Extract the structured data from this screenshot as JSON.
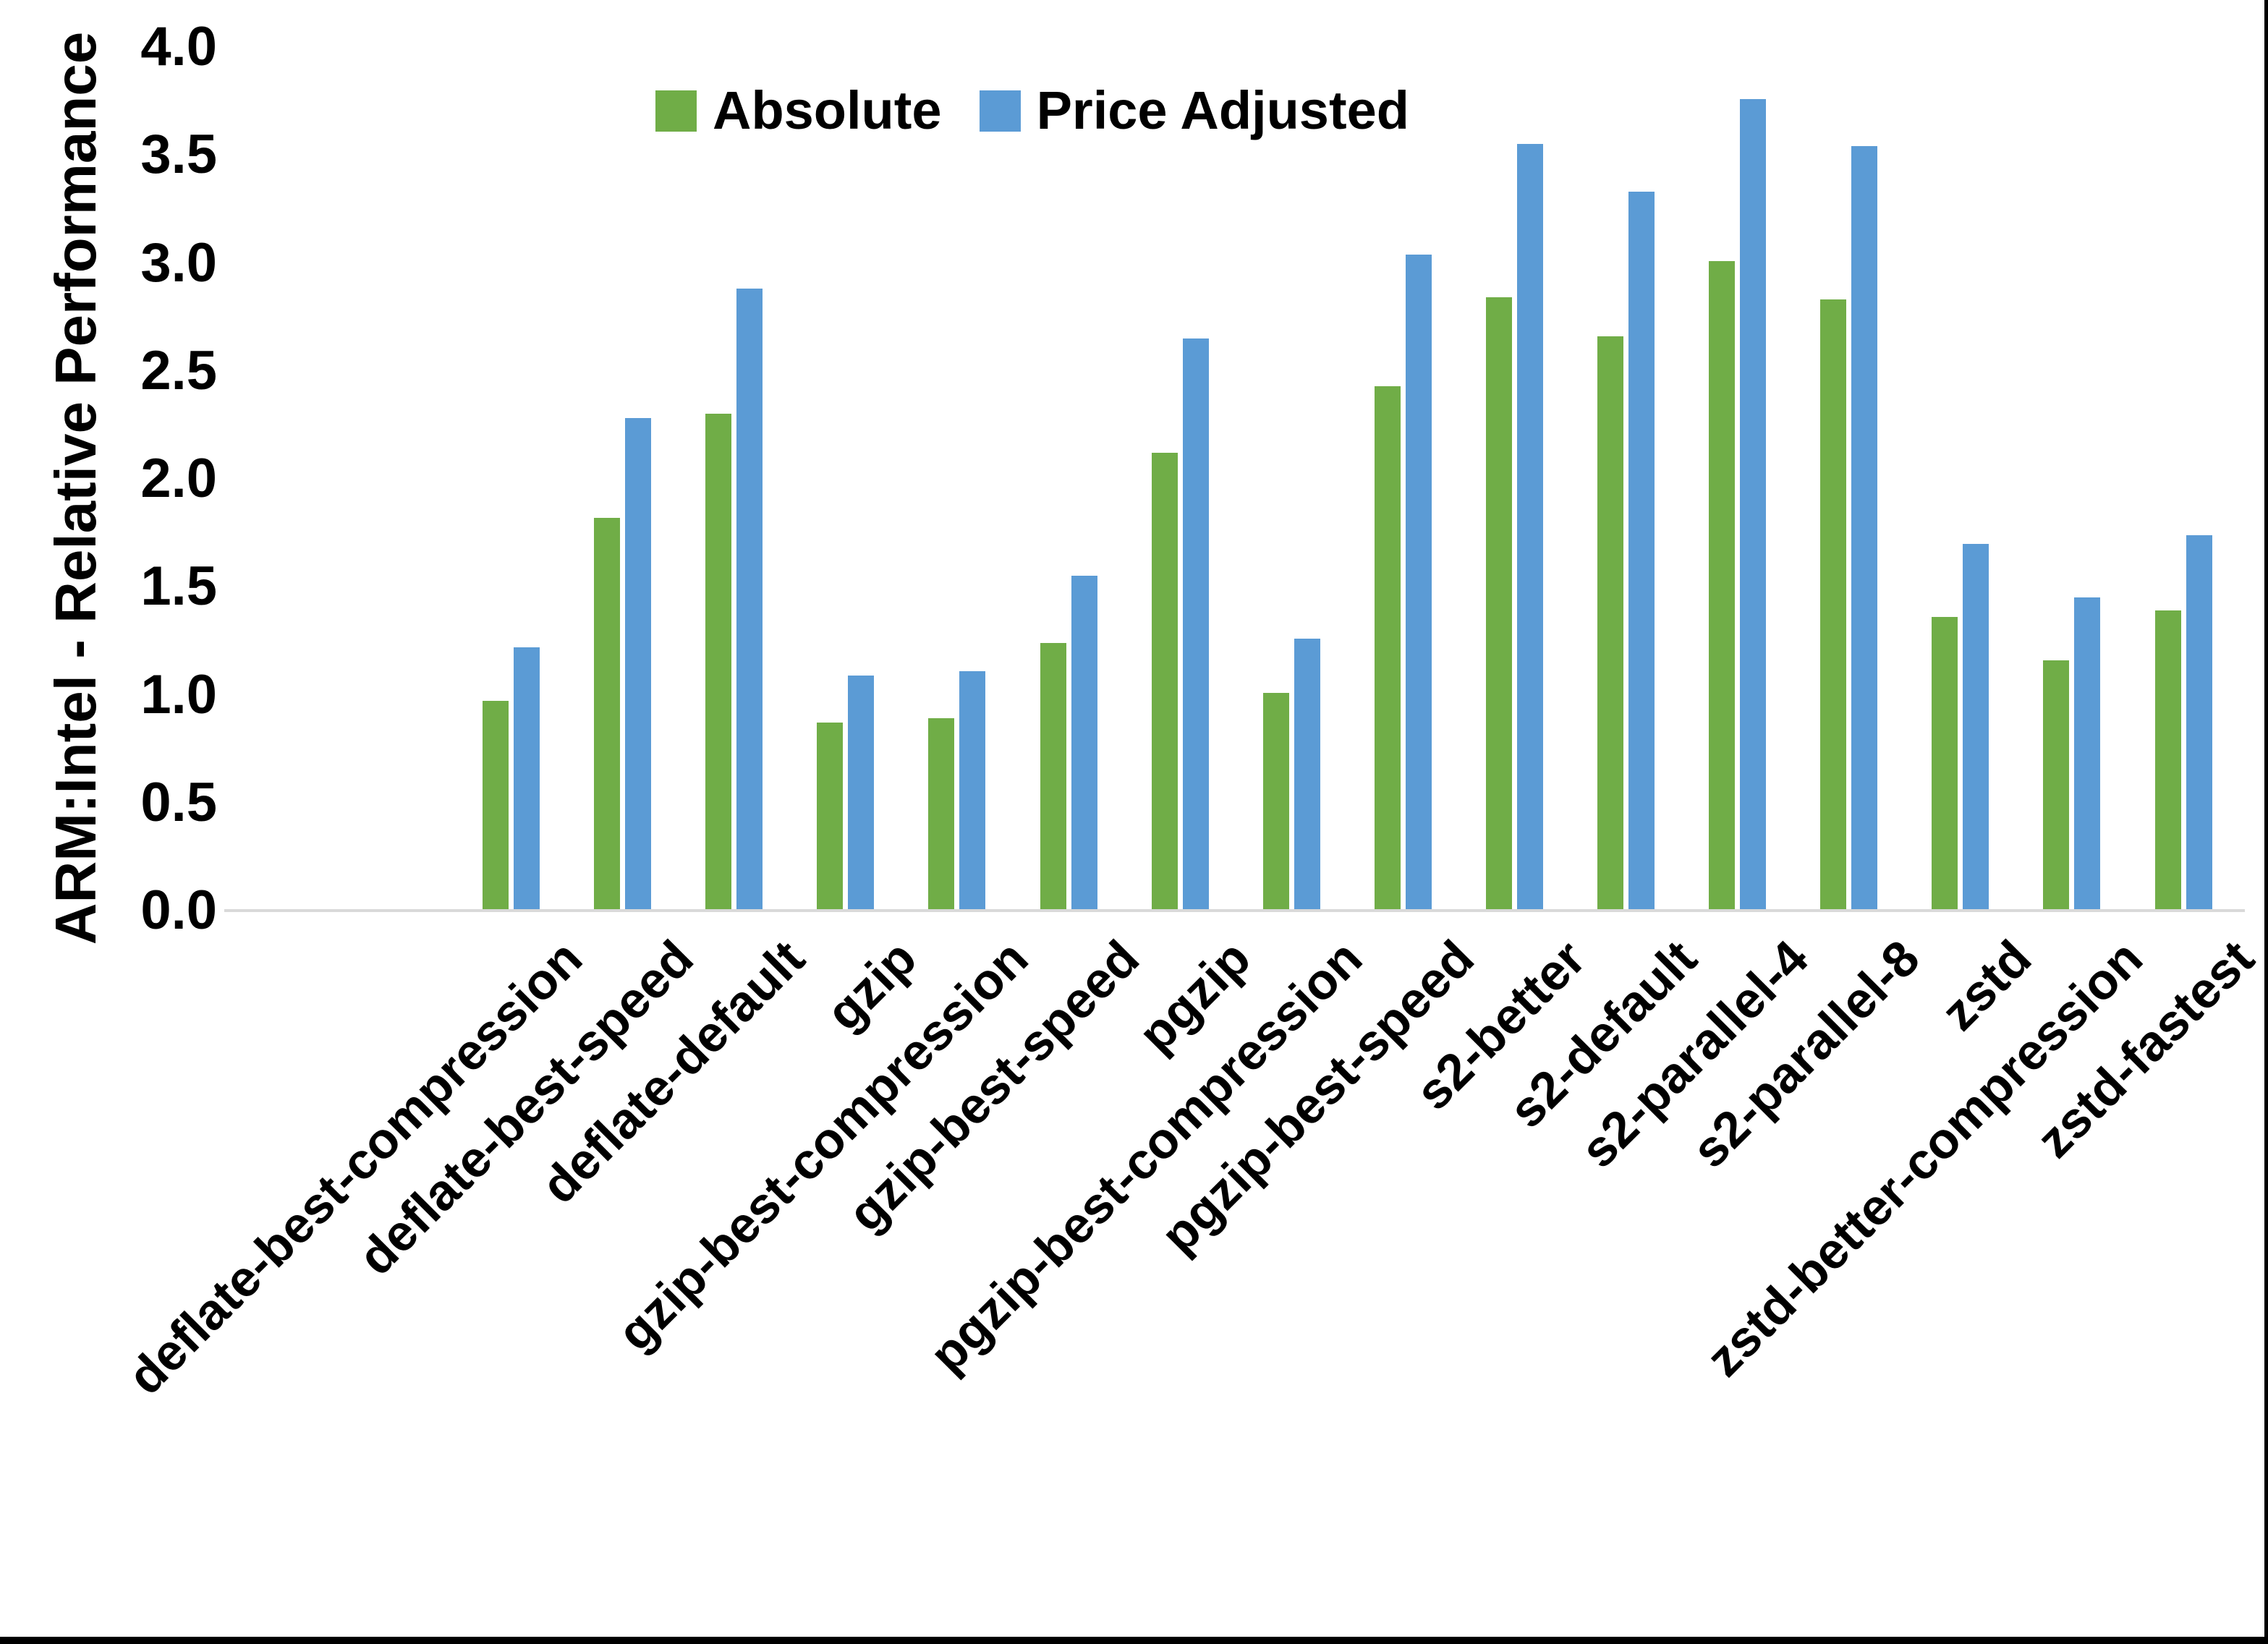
{
  "chart_data": {
    "type": "bar",
    "title": "",
    "xlabel": "",
    "ylabel": "ARM:Intel - Relative Performance",
    "ylim": [
      0.0,
      4.0
    ],
    "ytick_step": 0.5,
    "grid": false,
    "legend_position": "top-center",
    "categories": [
      "deflate-best-compression",
      "deflate-best-speed",
      "deflate-default",
      "gzip",
      "gzip-best-compression",
      "gzip-best-speed",
      "pgzip",
      "pgzip-best-compression",
      "pgzip-best-speed",
      "s2-better",
      "s2-default",
      "s2-parallel-4",
      "s2-parallel-8",
      "zstd",
      "zstd-better-compression",
      "zstd-fastest"
    ],
    "series": [
      {
        "name": "Absolute",
        "color": "#70AD47",
        "values": [
          0.97,
          1.82,
          2.3,
          0.87,
          0.89,
          1.24,
          2.12,
          1.01,
          2.43,
          2.84,
          2.66,
          3.01,
          2.83,
          1.36,
          1.16,
          1.39
        ]
      },
      {
        "name": "Price Adjusted",
        "color": "#5B9BD5",
        "values": [
          1.22,
          2.28,
          2.88,
          1.09,
          1.11,
          1.55,
          2.65,
          1.26,
          3.04,
          3.55,
          3.33,
          3.76,
          3.54,
          1.7,
          1.45,
          1.74
        ]
      }
    ],
    "ytick_labels": [
      "0.0",
      "0.5",
      "1.0",
      "1.5",
      "2.0",
      "2.5",
      "3.0",
      "3.5",
      "4.0"
    ]
  },
  "colors": {
    "axis_line": "#d9d9d9",
    "text": "#000000",
    "background": "#ffffff",
    "frame_edge": "#000000"
  }
}
